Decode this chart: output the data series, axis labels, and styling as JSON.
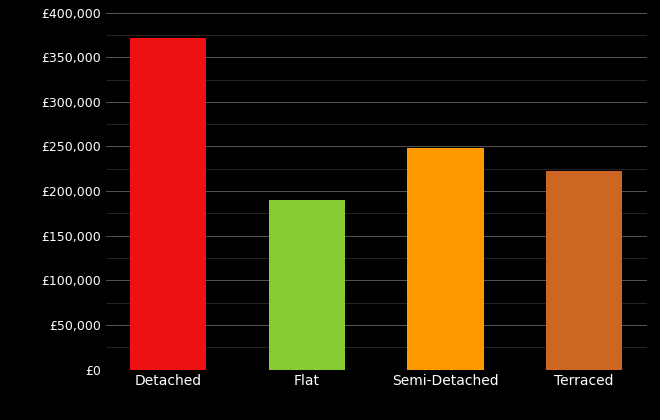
{
  "categories": [
    "Detached",
    "Flat",
    "Semi-Detached",
    "Terraced"
  ],
  "values": [
    372000,
    190000,
    248000,
    223000
  ],
  "bar_colors": [
    "#ee1111",
    "#88cc33",
    "#ff9900",
    "#cc6622"
  ],
  "background_color": "#000000",
  "text_color": "#ffffff",
  "grid_color": "#555555",
  "minor_grid_color": "#333333",
  "ylim": [
    0,
    400000
  ],
  "yticks": [
    0,
    50000,
    100000,
    150000,
    200000,
    250000,
    300000,
    350000,
    400000
  ],
  "tick_fontsize": 9,
  "label_fontsize": 10,
  "bar_width": 0.55
}
